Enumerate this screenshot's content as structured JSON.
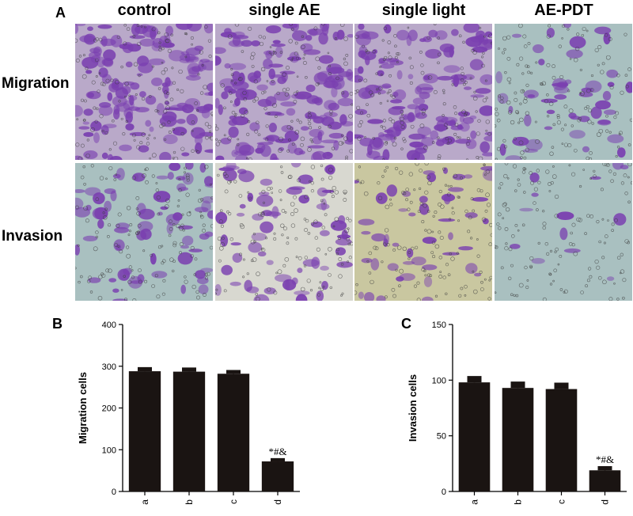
{
  "panel_a": {
    "letter": "A",
    "columns": [
      "control",
      "single AE",
      "single light",
      "AE-PDT"
    ],
    "rows": [
      "Migration",
      "Invasion"
    ],
    "stain_color": "#7a3fb0",
    "background_colors": [
      "#c9c7a0",
      "#a9c0c0",
      "#d8d8d0"
    ]
  },
  "chart_data": [
    {
      "panel": "B",
      "type": "bar",
      "categories": [
        "a",
        "b",
        "c",
        "d"
      ],
      "values": [
        288,
        287,
        282,
        72
      ],
      "errors": [
        8,
        8,
        7,
        6
      ],
      "ylabel": "Migration cells",
      "xlabel": "",
      "ylim": [
        0,
        400
      ],
      "yticks": [
        0,
        100,
        200,
        300,
        400
      ],
      "annotation": "*#&",
      "annotation_category": "d",
      "bar_color": "#1a1412",
      "grid": false
    },
    {
      "panel": "C",
      "type": "bar",
      "categories": [
        "a",
        "b",
        "c",
        "d"
      ],
      "values": [
        98,
        93,
        92,
        19
      ],
      "errors": [
        5,
        5,
        5,
        3
      ],
      "ylabel": "Invasion cells",
      "xlabel": "",
      "ylim": [
        0,
        150
      ],
      "yticks": [
        0,
        50,
        100,
        150
      ],
      "annotation": "*#&",
      "annotation_category": "d",
      "bar_color": "#1a1412",
      "grid": false
    }
  ]
}
